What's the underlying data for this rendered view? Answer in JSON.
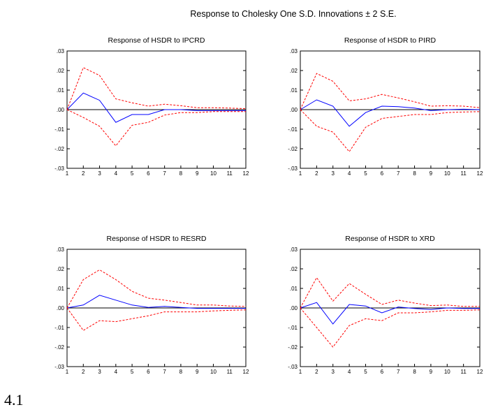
{
  "figure": {
    "title": "Response to Cholesky One S.D. Innovations ± 2 S.E.",
    "footnote": "4.1"
  },
  "colors": {
    "response": "#0000ff",
    "bands": "#ff0000",
    "axis": "#000000",
    "zero_line": "#000000"
  },
  "chart_data": [
    {
      "type": "line",
      "title": "Response of HSDR to IPCRD",
      "x": [
        1,
        2,
        3,
        4,
        5,
        6,
        7,
        8,
        9,
        10,
        11,
        12
      ],
      "ylim": [
        -0.03,
        0.03
      ],
      "yticks": [
        ".03",
        ".02",
        ".01",
        ".00",
        "-.01",
        "-.02",
        "-.03"
      ],
      "xticks": [
        "1",
        "2",
        "3",
        "4",
        "5",
        "6",
        "7",
        "8",
        "9",
        "10",
        "11",
        "12"
      ],
      "series": [
        {
          "role": "response",
          "values": [
            0.0,
            0.0085,
            0.0048,
            -0.0065,
            -0.0025,
            -0.0025,
            0.0,
            0.0,
            -0.0005,
            -0.0005,
            -0.0005,
            -0.0005
          ]
        },
        {
          "role": "upper",
          "values": [
            0.0,
            0.0215,
            0.0175,
            0.0055,
            0.0035,
            0.0018,
            0.0028,
            0.002,
            0.001,
            0.001,
            0.0008,
            0.0005
          ]
        },
        {
          "role": "lower",
          "values": [
            0.0,
            -0.004,
            -0.0085,
            -0.0185,
            -0.008,
            -0.0065,
            -0.0028,
            -0.0015,
            -0.0015,
            -0.001,
            -0.001,
            -0.001
          ]
        }
      ]
    },
    {
      "type": "line",
      "title": "Response of HSDR to PIRD",
      "x": [
        1,
        2,
        3,
        4,
        5,
        6,
        7,
        8,
        9,
        10,
        11,
        12
      ],
      "ylim": [
        -0.03,
        0.03
      ],
      "yticks": [
        ".03",
        ".02",
        ".01",
        ".00",
        "-.01",
        "-.02",
        "-.03"
      ],
      "xticks": [
        "1",
        "2",
        "3",
        "4",
        "5",
        "6",
        "7",
        "8",
        "9",
        "10",
        "11",
        "12"
      ],
      "series": [
        {
          "role": "response",
          "values": [
            0.0,
            0.005,
            0.0018,
            -0.0085,
            -0.0015,
            0.0018,
            0.0015,
            0.0008,
            -0.0005,
            0.0,
            0.0002,
            0.0
          ]
        },
        {
          "role": "upper",
          "values": [
            0.0,
            0.0185,
            0.0145,
            0.0045,
            0.0055,
            0.0078,
            0.006,
            0.004,
            0.0018,
            0.002,
            0.0018,
            0.001
          ]
        },
        {
          "role": "lower",
          "values": [
            0.0,
            -0.0085,
            -0.0115,
            -0.0215,
            -0.009,
            -0.0045,
            -0.0035,
            -0.0025,
            -0.0025,
            -0.0015,
            -0.0012,
            -0.001
          ]
        }
      ]
    },
    {
      "type": "line",
      "title": "Response of HSDR to RESRD",
      "x": [
        1,
        2,
        3,
        4,
        5,
        6,
        7,
        8,
        9,
        10,
        11,
        12
      ],
      "ylim": [
        -0.03,
        0.03
      ],
      "yticks": [
        ".03",
        ".02",
        ".01",
        ".00",
        "-.01",
        "-.02",
        "-.03"
      ],
      "xticks": [
        "1",
        "2",
        "3",
        "4",
        "5",
        "6",
        "7",
        "8",
        "9",
        "10",
        "11",
        "12"
      ],
      "series": [
        {
          "role": "response",
          "values": [
            0.0,
            0.0015,
            0.0065,
            0.004,
            0.0015,
            0.0003,
            0.0008,
            0.0003,
            -0.0002,
            -0.0002,
            -0.0002,
            -0.0002
          ]
        },
        {
          "role": "upper",
          "values": [
            0.0,
            0.0145,
            0.0195,
            0.0145,
            0.0085,
            0.005,
            0.004,
            0.0028,
            0.0015,
            0.0015,
            0.001,
            0.0008
          ]
        },
        {
          "role": "lower",
          "values": [
            0.0,
            -0.0115,
            -0.0065,
            -0.007,
            -0.0055,
            -0.004,
            -0.002,
            -0.002,
            -0.002,
            -0.0015,
            -0.0012,
            -0.001
          ]
        }
      ]
    },
    {
      "type": "line",
      "title": "Response of HSDR to XRD",
      "x": [
        1,
        2,
        3,
        4,
        5,
        6,
        7,
        8,
        9,
        10,
        11,
        12
      ],
      "ylim": [
        -0.03,
        0.03
      ],
      "yticks": [
        ".03",
        ".02",
        ".01",
        ".00",
        "-.01",
        "-.02",
        "-.03"
      ],
      "xticks": [
        "1",
        "2",
        "3",
        "4",
        "5",
        "6",
        "7",
        "8",
        "9",
        "10",
        "11",
        "12"
      ],
      "series": [
        {
          "role": "response",
          "values": [
            0.0,
            0.0028,
            -0.0082,
            0.0018,
            0.001,
            -0.0025,
            0.0005,
            -0.0003,
            -0.0008,
            0.0,
            -0.0003,
            -0.0003
          ]
        },
        {
          "role": "upper",
          "values": [
            0.0,
            0.0155,
            0.0035,
            0.0125,
            0.007,
            0.0018,
            0.004,
            0.0025,
            0.0012,
            0.0015,
            0.0008,
            0.0008
          ]
        },
        {
          "role": "lower",
          "values": [
            0.0,
            -0.01,
            -0.02,
            -0.009,
            -0.0055,
            -0.0065,
            -0.0025,
            -0.0025,
            -0.002,
            -0.0012,
            -0.0012,
            -0.001
          ]
        }
      ]
    }
  ]
}
